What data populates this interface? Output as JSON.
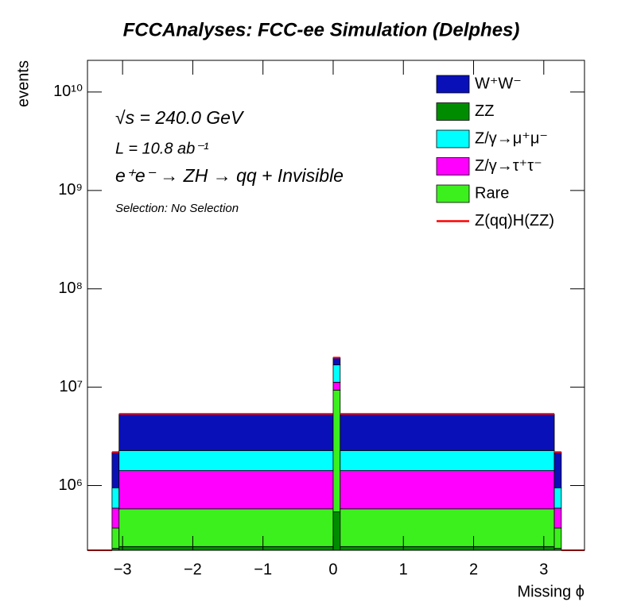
{
  "chart_data": {
    "type": "stacked_histogram",
    "title": "FCCAnalyses: FCC-ee Simulation (Delphes)",
    "xlabel": "Missing ϕ",
    "ylabel": "events",
    "annotations": [
      "√s = 240.0 GeV",
      "L = 10.8 ab⁻¹",
      "e⁺e⁻ → ZH → qq + Invisible",
      "Selection: No Selection"
    ],
    "bins": [
      -3.5,
      -3.15,
      -3.05,
      0,
      0.1,
      3.15,
      3.25,
      3.58
    ],
    "series": [
      {
        "name": "W⁺W⁻",
        "color": "#0a10b8",
        "values": [
          0,
          1230000,
          3050000,
          3100000,
          3050000,
          1230000,
          0
        ]
      },
      {
        "name": "ZZ",
        "color": "#008c00",
        "values": [
          0,
          230000,
          240000,
          540000,
          240000,
          230000,
          0
        ]
      },
      {
        "name": "Z/γ→μ⁺μ⁻",
        "color": "#00ffff",
        "values": [
          0,
          360000,
          850000,
          5600000,
          850000,
          360000,
          0
        ]
      },
      {
        "name": "Z/γ→τ⁺τ⁻",
        "color": "#ff00ff",
        "values": [
          0,
          220000,
          840000,
          1900000,
          840000,
          220000,
          0
        ]
      },
      {
        "name": "Rare",
        "color": "#3cf01e",
        "values": [
          0,
          140000,
          340000,
          8800000,
          340000,
          140000,
          0
        ]
      },
      {
        "name": "Z(qq)H(ZZ)",
        "color": "#ff0000",
        "values": [
          0,
          10000,
          30000,
          50000,
          30000,
          10000,
          0
        ]
      }
    ],
    "xlim": [
      -3.5,
      3.58
    ],
    "xticks": [
      -3,
      -2,
      -1,
      0,
      1,
      2,
      3
    ],
    "ylim": [
      220000,
      21000000000
    ],
    "log_y": true,
    "yticks": [
      {
        "value": 1000000,
        "label": "10⁶"
      },
      {
        "value": 10000000,
        "label": "10⁷"
      },
      {
        "value": 100000000,
        "label": "10⁸"
      },
      {
        "value": 1000000000,
        "label": "10⁹"
      },
      {
        "value": 10000000000,
        "label": "10¹⁰"
      }
    ],
    "legend": "upper right"
  }
}
